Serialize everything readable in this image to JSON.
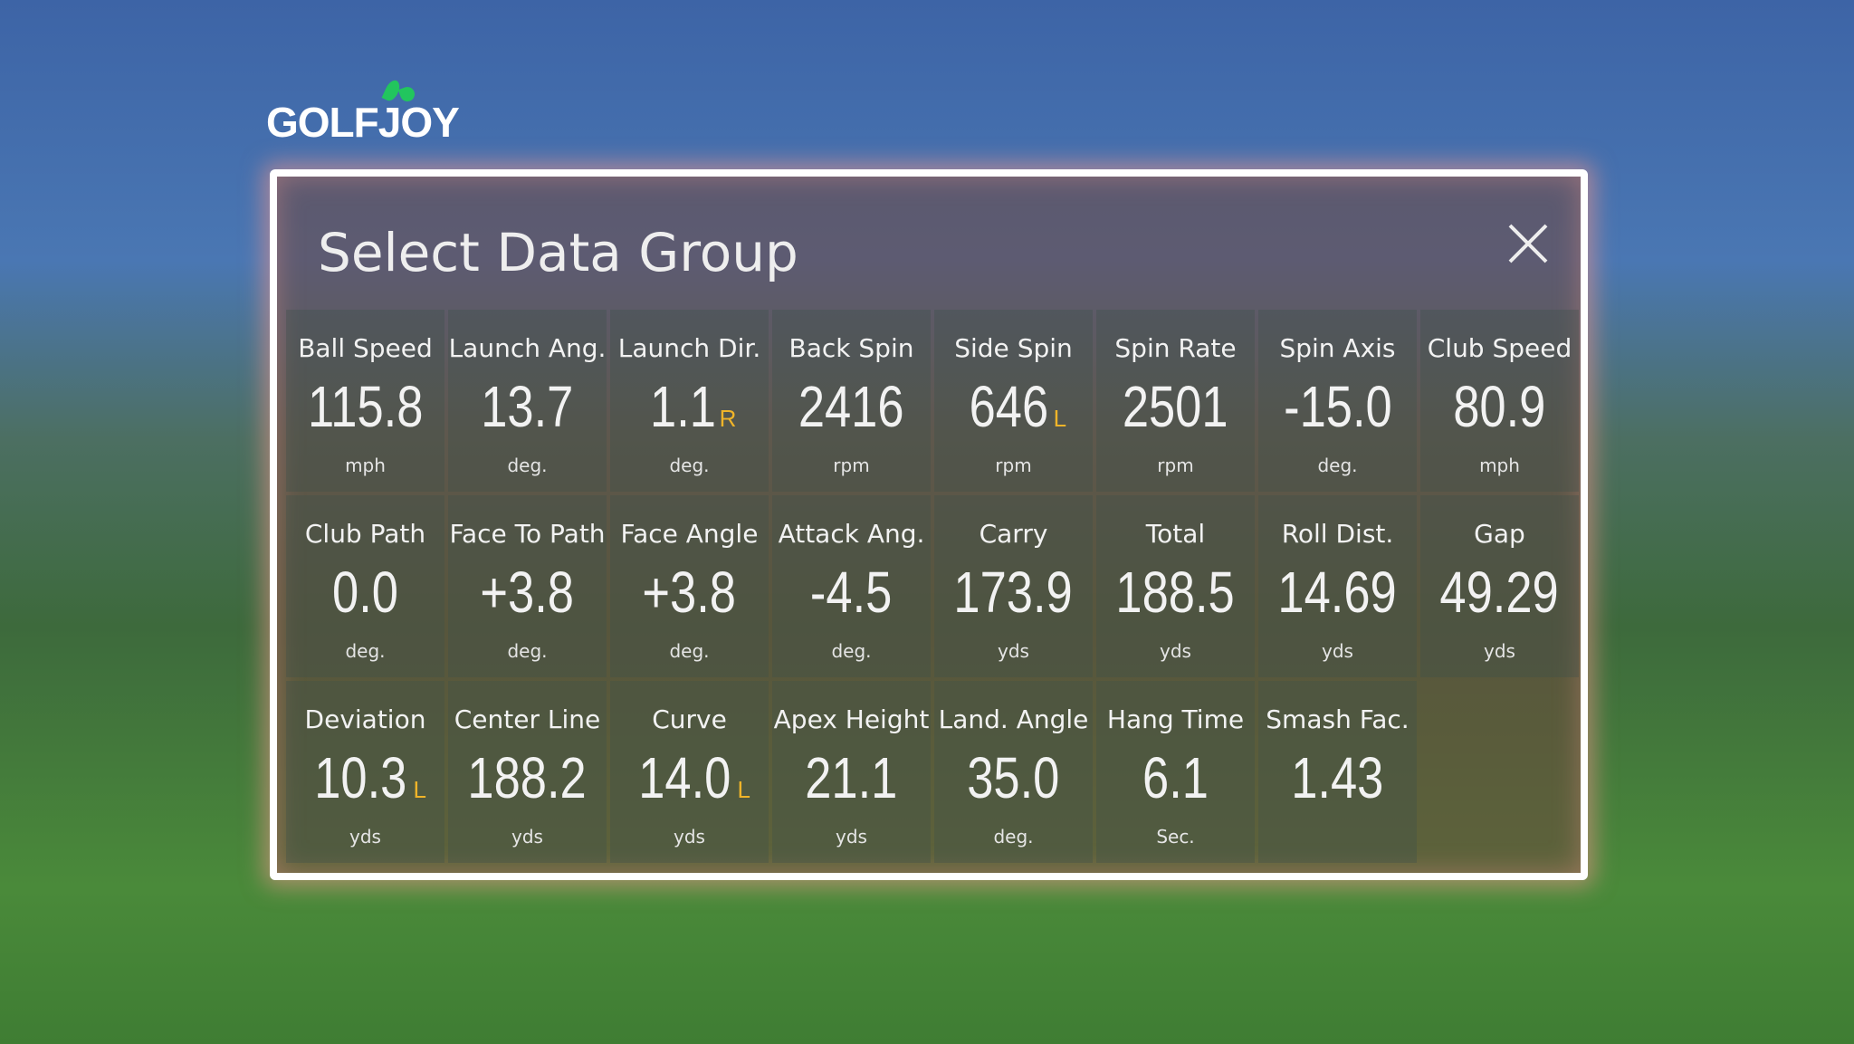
{
  "logo": "GOLFJOY",
  "dialog": {
    "title": "Select Data Group",
    "cells": [
      {
        "label": "Ball Speed",
        "value": "115.8",
        "unit": "mph"
      },
      {
        "label": "Launch Ang.",
        "value": "13.7",
        "unit": "deg."
      },
      {
        "label": "Launch Dir.",
        "value": "1.1",
        "direction": "R",
        "unit": "deg."
      },
      {
        "label": "Back Spin",
        "value": "2416",
        "unit": "rpm"
      },
      {
        "label": "Side Spin",
        "value": "646",
        "direction": "L",
        "unit": "rpm"
      },
      {
        "label": "Spin Rate",
        "value": "2501",
        "unit": "rpm"
      },
      {
        "label": "Spin Axis",
        "value": "-15.0",
        "unit": "deg."
      },
      {
        "label": "Club Speed",
        "value": "80.9",
        "unit": "mph"
      },
      {
        "label": "Club Path",
        "value": "0.0",
        "unit": "deg."
      },
      {
        "label": "Face To Path",
        "value": "+3.8",
        "unit": "deg."
      },
      {
        "label": "Face Angle",
        "value": "+3.8",
        "unit": "deg."
      },
      {
        "label": "Attack Ang.",
        "value": "-4.5",
        "unit": "deg."
      },
      {
        "label": "Carry",
        "value": "173.9",
        "unit": "yds"
      },
      {
        "label": "Total",
        "value": "188.5",
        "unit": "yds"
      },
      {
        "label": "Roll Dist.",
        "value": "14.69",
        "unit": "yds"
      },
      {
        "label": "Gap",
        "value": "49.29",
        "unit": "yds"
      },
      {
        "label": "Deviation",
        "value": "10.3",
        "direction": "L",
        "unit": "yds"
      },
      {
        "label": "Center Line",
        "value": "188.2",
        "unit": "yds"
      },
      {
        "label": "Curve",
        "value": "14.0",
        "direction": "L",
        "unit": "yds"
      },
      {
        "label": "Apex Height",
        "value": "21.1",
        "unit": "yds"
      },
      {
        "label": "Land. Angle",
        "value": "35.0",
        "unit": "deg."
      },
      {
        "label": "Hang Time",
        "value": "6.1",
        "unit": "Sec."
      },
      {
        "label": "Smash Fac.",
        "value": "1.43"
      }
    ]
  }
}
